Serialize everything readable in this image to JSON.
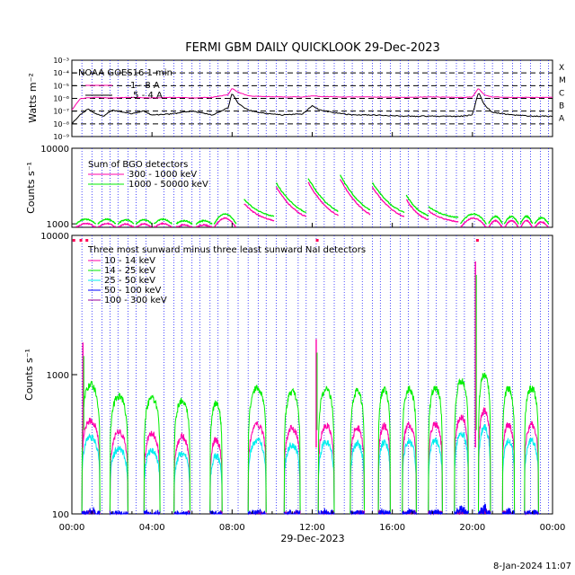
{
  "title": "FERMI GBM DAILY QUICKLOOK  29-Dec-2023",
  "footer_timestamp": "8-Jan-2024 11:07",
  "x_axis": {
    "label": "29-Dec-2023",
    "ticks": [
      "00:00",
      "04:00",
      "08:00",
      "12:00",
      "16:00",
      "20:00",
      "00:00"
    ],
    "range_hours": [
      0,
      24
    ]
  },
  "colors": {
    "black": "#000000",
    "magenta": "#ff00aa",
    "green": "#00ee00",
    "cyan": "#00eeee",
    "blue": "#0000ff",
    "purple": "#990099",
    "grid_blue": "#0000ff",
    "red_marker": "#ff0055"
  },
  "chart_data": [
    {
      "type": "line",
      "id": "goes",
      "ylabel": "Watts m⁻²",
      "y_scale": "log",
      "ylim": [
        1e-09,
        0.001
      ],
      "y_tick_labels": [
        "10⁻³",
        "10⁻⁴",
        "10⁻⁵",
        "10⁻⁶",
        "10⁻⁷",
        "10⁻⁸",
        "10⁻⁹"
      ],
      "class_labels": [
        "X",
        "M",
        "C",
        "B",
        "A"
      ],
      "legend_title": "NOAA GOES16 1 min",
      "series": [
        {
          "name": "1 - 8 A",
          "color": "#ff00aa",
          "x": [
            0,
            0.4,
            0.8,
            1.2,
            2.0,
            3.0,
            4.0,
            5.0,
            6.0,
            7.0,
            7.8,
            8.0,
            8.3,
            8.8,
            9.5,
            10.5,
            11.5,
            12.0,
            12.5,
            13.5,
            15.0,
            16.5,
            18.0,
            19.5,
            20.0,
            20.3,
            20.6,
            21.0,
            22.0,
            23.0,
            24.0
          ],
          "values": [
            1.2e-07,
            9e-07,
            1.1e-06,
            1.2e-06,
            1.1e-06,
            1.2e-06,
            1.1e-06,
            1.2e-06,
            1.1e-06,
            1.2e-06,
            2e-06,
            6e-06,
            3e-06,
            1.6e-06,
            1.4e-06,
            1.3e-06,
            1.3e-06,
            1.6e-06,
            1.4e-06,
            1.3e-06,
            1.3e-06,
            1.2e-06,
            1.3e-06,
            1.2e-06,
            1.3e-06,
            6e-06,
            1.8e-06,
            1.3e-06,
            1.2e-06,
            1.2e-06,
            1.2e-06
          ]
        },
        {
          "name": ".5 - 4 A",
          "color": "#000000",
          "x": [
            0,
            0.4,
            0.8,
            1.2,
            1.6,
            2.0,
            3.0,
            3.6,
            4.0,
            5.0,
            6.0,
            7.0,
            7.8,
            8.0,
            8.3,
            8.8,
            9.5,
            10.5,
            11.5,
            12.0,
            12.4,
            13.0,
            14.0,
            15.0,
            16.5,
            18.0,
            19.5,
            20.0,
            20.3,
            20.6,
            21.0,
            22.0,
            23.0,
            24.0
          ],
          "values": [
            1e-08,
            5e-08,
            1.5e-07,
            6e-08,
            4e-08,
            1.2e-07,
            6e-08,
            1e-07,
            5e-08,
            6e-08,
            1e-07,
            5e-08,
            1.8e-07,
            2.5e-06,
            4e-07,
            1.2e-07,
            7e-08,
            5e-08,
            6e-08,
            2.5e-07,
            1.2e-07,
            8e-08,
            5e-08,
            5e-08,
            4e-08,
            4e-08,
            4e-08,
            5e-08,
            3e-06,
            3e-07,
            8e-08,
            5e-08,
            4e-08,
            4e-08
          ]
        }
      ]
    },
    {
      "type": "line",
      "id": "bgo",
      "ylabel": "Counts s⁻¹",
      "y_scale": "log",
      "ylim": [
        900,
        10000
      ],
      "y_tick_labels": [
        "10000",
        "1000"
      ],
      "legend_title": "Sum of BGO detectors",
      "segments": [
        [
          0.2,
          1.2
        ],
        [
          1.3,
          2.2
        ],
        [
          2.3,
          3.1
        ],
        [
          3.2,
          4.0
        ],
        [
          4.1,
          5.0
        ],
        [
          5.2,
          6.0
        ],
        [
          6.2,
          7.0
        ],
        [
          7.1,
          8.2
        ],
        [
          8.6,
          10.1
        ],
        [
          10.2,
          11.7
        ],
        [
          11.8,
          13.3
        ],
        [
          13.4,
          14.9
        ],
        [
          15.0,
          16.6
        ],
        [
          16.7,
          17.8
        ],
        [
          17.8,
          19.3
        ],
        [
          19.4,
          20.7
        ],
        [
          20.8,
          21.5
        ],
        [
          21.6,
          22.3
        ],
        [
          22.4,
          23.0
        ],
        [
          23.1,
          23.8
        ]
      ],
      "segment_peaks_high_band": [
        1150,
        1150,
        1130,
        1130,
        1150,
        1100,
        1100,
        1350,
        2100,
        3500,
        4000,
        4400,
        3500,
        2400,
        1700,
        1350,
        1250,
        1250,
        1250,
        1200
      ],
      "series": [
        {
          "name": "300 - 1000 keV",
          "color": "#ff00aa"
        },
        {
          "name": "1000 - 50000 keV",
          "color": "#00ee00"
        }
      ]
    },
    {
      "type": "line",
      "id": "nai",
      "ylabel": "Counts s⁻¹",
      "y_scale": "log",
      "ylim": [
        100,
        10000
      ],
      "y_tick_labels": [
        "10000",
        "1000",
        "100"
      ],
      "legend_title": "Three most sunward minus three least sunward NaI detectors",
      "segments": [
        [
          0.5,
          1.4
        ],
        [
          1.9,
          2.8
        ],
        [
          3.6,
          4.4
        ],
        [
          5.1,
          5.9
        ],
        [
          6.9,
          7.5
        ],
        [
          8.8,
          9.7
        ],
        [
          10.6,
          11.4
        ],
        [
          12.3,
          13.1
        ],
        [
          13.9,
          14.6
        ],
        [
          15.3,
          15.9
        ],
        [
          16.5,
          17.2
        ],
        [
          17.8,
          18.5
        ],
        [
          19.1,
          19.8
        ],
        [
          20.3,
          20.9
        ],
        [
          21.5,
          22.1
        ],
        [
          22.6,
          23.3
        ]
      ],
      "segment_peaks_green": [
        850,
        700,
        680,
        650,
        620,
        800,
        750,
        780,
        760,
        780,
        790,
        800,
        900,
        1000,
        800,
        800
      ],
      "spikes": [
        {
          "x": 0.55,
          "value": 1700
        },
        {
          "x": 12.2,
          "value": 1800
        },
        {
          "x": 20.15,
          "value": 6500
        }
      ],
      "series": [
        {
          "name": "10 - 14 keV",
          "color": "#ff00aa"
        },
        {
          "name": "14 - 25 keV",
          "color": "#00ee00"
        },
        {
          "name": "25 - 50 keV",
          "color": "#00eeee"
        },
        {
          "name": "50 - 100 keV",
          "color": "#0000ff"
        },
        {
          "name": "100 - 300 keV",
          "color": "#990099"
        }
      ],
      "saa_markers_x": [
        0.1,
        0.45,
        0.75,
        12.25,
        20.25
      ]
    }
  ],
  "event_lines_x": [
    0.5,
    1.0,
    1.5,
    1.9,
    2.3,
    2.8,
    3.2,
    3.7,
    4.6,
    5.1,
    5.5,
    6.0,
    6.4,
    6.9,
    7.3,
    7.8,
    8.3,
    8.8,
    9.3,
    9.7,
    10.2,
    10.7,
    11.3,
    11.7,
    12.2,
    12.6,
    13.1,
    13.6,
    14.0,
    14.5,
    15.0,
    15.4,
    15.9,
    16.4,
    16.8,
    17.3,
    17.8,
    18.2,
    18.7,
    19.2,
    19.6,
    20.1,
    20.6,
    21.0,
    21.5,
    22.0,
    22.4,
    22.9,
    23.4,
    23.8
  ]
}
